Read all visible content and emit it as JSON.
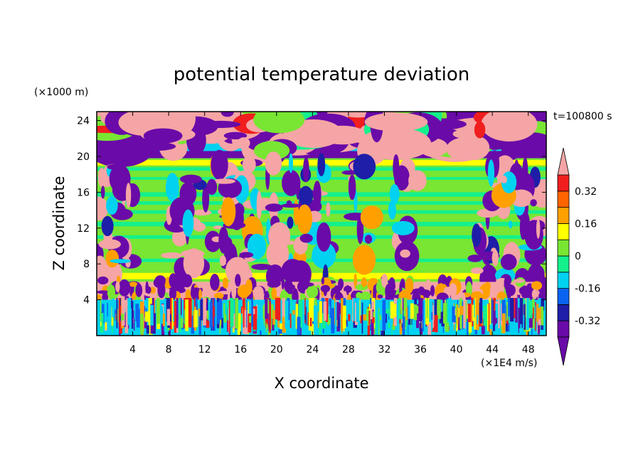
{
  "chart_data": {
    "type": "heatmap",
    "title": "potential temperature deviation",
    "xlabel": "X coordinate",
    "ylabel": "Z coordinate",
    "x_unit": "(×1E4 m/s)",
    "y_unit": "(×1000 m)",
    "time_label": "t=100800 s",
    "xlim": [
      0,
      50
    ],
    "ylim": [
      0,
      25
    ],
    "x_ticks": [
      "4",
      "8",
      "12",
      "16",
      "20",
      "24",
      "28",
      "32",
      "36",
      "40",
      "44",
      "48"
    ],
    "x_tick_values": [
      4,
      8,
      12,
      16,
      20,
      24,
      28,
      32,
      36,
      40,
      44,
      48
    ],
    "y_ticks": [
      "4",
      "8",
      "12",
      "16",
      "20",
      "24"
    ],
    "y_tick_values": [
      4,
      8,
      12,
      16,
      20,
      24
    ],
    "colorbar": {
      "levels": [
        -0.4,
        -0.32,
        -0.24,
        -0.16,
        -0.08,
        0,
        0.08,
        0.16,
        0.24,
        0.32,
        0.4
      ],
      "labels": [
        "0.32",
        "0.16",
        "0",
        "-0.16",
        "-0.32"
      ],
      "label_values": [
        0.32,
        0.16,
        0,
        -0.16,
        -0.32
      ],
      "colors": [
        "#6a0aa8",
        "#1e1ea8",
        "#0a64f0",
        "#00d2f0",
        "#14f08c",
        "#78e632",
        "#ffff00",
        "#ffa000",
        "#ff6400",
        "#f01e1e"
      ],
      "over_color": "#f5a5a5",
      "under_color": "#6a0aa8",
      "extend": "both"
    },
    "grid": false,
    "legend_position": "right",
    "layers": [
      {
        "z_range": [
          20.5,
          25
        ],
        "dominant": "mixed",
        "colors": [
          "#6a0aa8",
          "#f5a5a5",
          "#78e632",
          "#00d2f0",
          "#14f08c"
        ]
      },
      {
        "z_range": [
          19.8,
          20.5
        ],
        "dominant": "-0.4",
        "colors": [
          "#6a0aa8",
          "#f5a5a5"
        ]
      },
      {
        "z_range": [
          6,
          19.8
        ],
        "dominant": "0",
        "colors": [
          "#78e632",
          "#14f08c",
          "#ffff00",
          "#6a0aa8",
          "#f5a5a5"
        ]
      },
      {
        "z_range": [
          4,
          6
        ],
        "dominant": "mixed",
        "colors": [
          "#6a0aa8",
          "#f5a5a5",
          "#ffa000",
          "#78e632"
        ]
      },
      {
        "z_range": [
          0,
          4
        ],
        "dominant": "mixed",
        "colors": [
          "#00d2f0",
          "#78e632",
          "#ffff00",
          "#1e1ea8",
          "#0a64f0",
          "#f01e1e",
          "#6a0aa8"
        ]
      }
    ]
  }
}
